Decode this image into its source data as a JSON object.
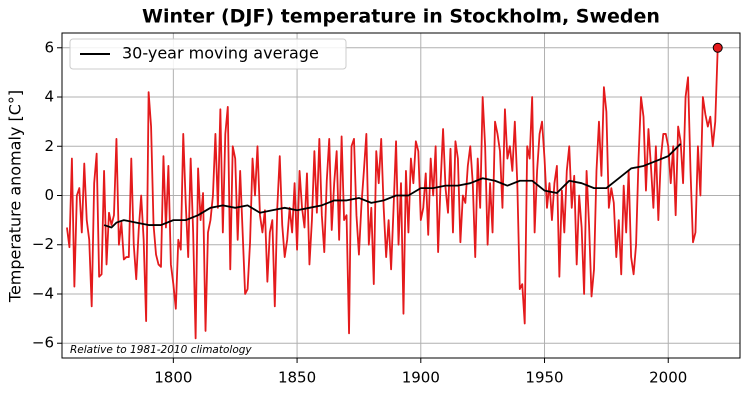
{
  "chart_data": {
    "type": "line",
    "title": "Winter (DJF) temperature in Stockholm, Sweden",
    "y_label": "Temperature anomaly [C°]",
    "annotation": "Relative to 1981-2010 climatology",
    "xlim": [
      1755,
      2029
    ],
    "ylim": [
      -6.6,
      6.6
    ],
    "xticks": [
      1800,
      1850,
      1900,
      1950,
      2000
    ],
    "yticks": [
      {
        "value": -6,
        "label": "−6"
      },
      {
        "value": -4,
        "label": "−4"
      },
      {
        "value": -2,
        "label": "−2"
      },
      0,
      2,
      4,
      6
    ],
    "grid": true,
    "legend": "upper left",
    "series": [
      {
        "color": "#e41a1c",
        "highlight_last": true,
        "x": [
          1757,
          1758,
          1759,
          1760,
          1761,
          1762,
          1763,
          1764,
          1765,
          1766,
          1767,
          1768,
          1769,
          1770,
          1771,
          1772,
          1773,
          1774,
          1775,
          1776,
          1777,
          1778,
          1779,
          1780,
          1781,
          1782,
          1783,
          1784,
          1785,
          1786,
          1787,
          1788,
          1789,
          1790,
          1791,
          1792,
          1793,
          1794,
          1795,
          1796,
          1797,
          1798,
          1799,
          1800,
          1801,
          1802,
          1803,
          1804,
          1805,
          1806,
          1807,
          1808,
          1809,
          1810,
          1811,
          1812,
          1813,
          1814,
          1815,
          1816,
          1817,
          1818,
          1819,
          1820,
          1821,
          1822,
          1823,
          1824,
          1825,
          1826,
          1827,
          1828,
          1829,
          1830,
          1831,
          1832,
          1833,
          1834,
          1835,
          1836,
          1837,
          1838,
          1839,
          1840,
          1841,
          1842,
          1843,
          1844,
          1845,
          1846,
          1847,
          1848,
          1849,
          1850,
          1851,
          1852,
          1853,
          1854,
          1855,
          1856,
          1857,
          1858,
          1859,
          1860,
          1861,
          1862,
          1863,
          1864,
          1865,
          1866,
          1867,
          1868,
          1869,
          1870,
          1871,
          1872,
          1873,
          1874,
          1875,
          1876,
          1877,
          1878,
          1879,
          1880,
          1881,
          1882,
          1883,
          1884,
          1885,
          1886,
          1887,
          1888,
          1889,
          1890,
          1891,
          1892,
          1893,
          1894,
          1895,
          1896,
          1897,
          1898,
          1899,
          1900,
          1901,
          1902,
          1903,
          1904,
          1905,
          1906,
          1907,
          1908,
          1909,
          1910,
          1911,
          1912,
          1913,
          1914,
          1915,
          1916,
          1917,
          1918,
          1919,
          1920,
          1921,
          1922,
          1923,
          1924,
          1925,
          1926,
          1927,
          1928,
          1929,
          1930,
          1931,
          1932,
          1933,
          1934,
          1935,
          1936,
          1937,
          1938,
          1939,
          1940,
          1941,
          1942,
          1943,
          1944,
          1945,
          1946,
          1947,
          1948,
          1949,
          1950,
          1951,
          1952,
          1953,
          1954,
          1955,
          1956,
          1957,
          1958,
          1959,
          1960,
          1961,
          1962,
          1963,
          1964,
          1965,
          1966,
          1967,
          1968,
          1969,
          1970,
          1971,
          1972,
          1973,
          1974,
          1975,
          1976,
          1977,
          1978,
          1979,
          1980,
          1981,
          1982,
          1983,
          1984,
          1985,
          1986,
          1987,
          1988,
          1989,
          1990,
          1991,
          1992,
          1993,
          1994,
          1995,
          1996,
          1997,
          1998,
          1999,
          2000,
          2001,
          2002,
          2003,
          2004,
          2005,
          2006,
          2007,
          2008,
          2009,
          2010,
          2011,
          2012,
          2013,
          2014,
          2015,
          2016,
          2017,
          2018,
          2019,
          2020
        ],
        "values": [
          -1.3,
          -2.1,
          1.5,
          -3.7,
          0,
          0.3,
          -1.5,
          1.3,
          -1,
          -1.8,
          -4.5,
          0.5,
          1.7,
          -3.3,
          -3.2,
          1,
          -2.8,
          -0.7,
          -1.2,
          -0.8,
          2.3,
          -2,
          -1.1,
          -2.6,
          -2.5,
          -2.5,
          1.5,
          -2,
          -3.4,
          -1.4,
          0,
          -1.8,
          -5.1,
          4.2,
          2.8,
          -1.2,
          -2.4,
          -2.8,
          -2.9,
          1.6,
          -1.3,
          1.2,
          -2.8,
          -3.6,
          -4.6,
          -1.8,
          -2.2,
          2.5,
          -0.3,
          -2.5,
          1.5,
          -1.5,
          -5.8,
          1.1,
          -1,
          0.1,
          -5.5,
          -1.5,
          -1,
          0,
          2.5,
          -0.5,
          3.5,
          -1.5,
          2.5,
          3.6,
          -3,
          2,
          1.5,
          -1.8,
          1,
          -1.5,
          -4,
          -3.8,
          -1.9,
          1.5,
          0,
          2,
          -0.8,
          -1.5,
          -0.6,
          -3.5,
          -1.5,
          -1,
          -4.5,
          -0.5,
          1.6,
          -1.2,
          -2.5,
          -1.8,
          -0.5,
          -1.5,
          0.5,
          -2.2,
          1,
          -0.5,
          -1.3,
          0.9,
          -2.8,
          -1,
          1.8,
          -0.7,
          2.3,
          -0.8,
          -2.3,
          0.6,
          2.3,
          -1.4,
          0.5,
          1.8,
          -1.8,
          2.4,
          -1,
          -0.8,
          -5.6,
          2,
          2.3,
          -0.8,
          -2.4,
          -0.4,
          1,
          2.5,
          -2,
          -0.5,
          -3.6,
          1.8,
          0.5,
          2.3,
          -0.5,
          -2.5,
          -1,
          -3,
          -0.5,
          2.2,
          -2,
          0.5,
          -4.8,
          1,
          -1.5,
          1.5,
          0.5,
          2.2,
          1.8,
          -1,
          -0.5,
          0.9,
          -1.6,
          1.5,
          0,
          2,
          -2.3,
          0.5,
          2.7,
          0.3,
          -0.7,
          1.9,
          -1.5,
          2.2,
          1.5,
          -1.9,
          0,
          -0.3,
          1.2,
          2,
          0.5,
          -2.5,
          1.5,
          -0.5,
          4,
          2,
          -2,
          0.5,
          -1.5,
          3,
          2.5,
          1.8,
          -0.5,
          3.5,
          1.5,
          2,
          1,
          3,
          0.5,
          -3.8,
          -3.6,
          -5.2,
          2,
          1.5,
          4,
          -1.5,
          1,
          2.5,
          3,
          1.5,
          -0.5,
          0.5,
          -1,
          0.5,
          1.2,
          -3.3,
          0.2,
          -1.5,
          1,
          2,
          -0.5,
          0.8,
          -2.8,
          0,
          -1.3,
          -4,
          1,
          -1.2,
          -4.1,
          -3,
          1,
          3,
          0.8,
          4.4,
          3.4,
          -0.5,
          0.3,
          -0.3,
          -2.5,
          -1,
          -3.2,
          0.4,
          -1.5,
          1,
          -2.5,
          -3.2,
          -2,
          1.5,
          4,
          3.2,
          0.2,
          2.7,
          1.2,
          -0.5,
          2,
          -1,
          1.5,
          2.5,
          2.5,
          2,
          0.5,
          2,
          -0.8,
          2.8,
          2.2,
          0.5,
          4,
          4.8,
          1,
          -1.9,
          -1.5,
          2,
          0,
          4,
          3.3,
          2.8,
          3.2,
          2,
          3,
          6
        ]
      },
      {
        "name": "30-year moving average",
        "color": "#000000",
        "x": [
          1772,
          1775,
          1777,
          1780,
          1785,
          1790,
          1795,
          1800,
          1805,
          1810,
          1815,
          1820,
          1825,
          1830,
          1835,
          1840,
          1845,
          1850,
          1855,
          1860,
          1865,
          1870,
          1875,
          1880,
          1885,
          1890,
          1895,
          1900,
          1905,
          1910,
          1915,
          1920,
          1925,
          1930,
          1935,
          1940,
          1945,
          1950,
          1955,
          1960,
          1965,
          1970,
          1975,
          1980,
          1985,
          1990,
          1995,
          2000,
          2005
        ],
        "values": [
          -1.2,
          -1.3,
          -1.1,
          -1,
          -1.1,
          -1.2,
          -1.2,
          -1,
          -1,
          -0.8,
          -0.5,
          -0.4,
          -0.5,
          -0.4,
          -0.7,
          -0.6,
          -0.5,
          -0.6,
          -0.5,
          -0.4,
          -0.2,
          -0.2,
          -0.1,
          -0.3,
          -0.2,
          0,
          0,
          0.3,
          0.3,
          0.4,
          0.4,
          0.5,
          0.7,
          0.6,
          0.4,
          0.6,
          0.6,
          0.2,
          0.1,
          0.6,
          0.5,
          0.3,
          0.3,
          0.7,
          1.1,
          1.2,
          1.4,
          1.6,
          2.1
        ]
      }
    ]
  }
}
